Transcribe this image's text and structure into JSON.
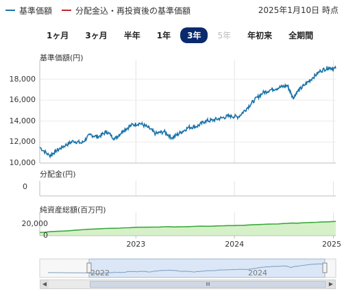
{
  "legend": {
    "series1_label": "基準価額",
    "series1_color": "#1a73a8",
    "series2_label": "分配金込・再投資後の基準価額",
    "series2_color": "#c0282e"
  },
  "as_of": "2025年1月10日 時点",
  "tabs": [
    {
      "label": "1ヶ月",
      "state": "normal"
    },
    {
      "label": "3ヶ月",
      "state": "normal"
    },
    {
      "label": "半年",
      "state": "normal"
    },
    {
      "label": "1年",
      "state": "normal"
    },
    {
      "label": "3年",
      "state": "active"
    },
    {
      "label": "5年",
      "state": "disabled"
    },
    {
      "label": "年初来",
      "state": "normal"
    },
    {
      "label": "全期間",
      "state": "normal"
    }
  ],
  "panels": {
    "price_title": "基準価額(円)",
    "dist_title": "分配金(円)",
    "assets_title": "純資産総額(百万円)"
  },
  "navigator": {
    "labels": [
      "2022",
      "2024"
    ],
    "scroll_glyph": "III",
    "left_arrow": "◀",
    "right_arrow": "▶"
  },
  "chart_data": [
    {
      "type": "line",
      "title": "基準価額(円)",
      "x_range": [
        "2022-01-10",
        "2025-01-10"
      ],
      "x_ticks": [
        "2023",
        "2024",
        "2025"
      ],
      "y_ticks": [
        "10,000",
        "12,000",
        "14,000",
        "16,000",
        "18,000"
      ],
      "ylim": [
        10000,
        19800
      ],
      "color": "#1a73a8",
      "x": [
        "2022-01-10",
        "2022-02-15",
        "2022-03-15",
        "2022-04-15",
        "2022-05-15",
        "2022-06-15",
        "2022-07-15",
        "2022-08-15",
        "2022-09-15",
        "2022-10-15",
        "2022-11-15",
        "2022-12-15",
        "2023-01-15",
        "2023-02-15",
        "2023-03-15",
        "2023-04-15",
        "2023-05-15",
        "2023-06-15",
        "2023-07-15",
        "2023-08-15",
        "2023-09-15",
        "2023-10-15",
        "2023-11-15",
        "2023-12-15",
        "2024-01-15",
        "2024-02-15",
        "2024-03-15",
        "2024-04-15",
        "2024-05-15",
        "2024-06-15",
        "2024-07-15",
        "2024-08-05",
        "2024-08-20",
        "2024-09-15",
        "2024-10-15",
        "2024-11-15",
        "2024-12-15",
        "2025-01-10"
      ],
      "values": [
        11500,
        10700,
        11200,
        11700,
        12100,
        11900,
        12700,
        12500,
        13000,
        12300,
        13100,
        13600,
        13800,
        13400,
        12800,
        13000,
        12400,
        12900,
        13400,
        13500,
        14000,
        14100,
        14300,
        14500,
        14400,
        15200,
        16000,
        16700,
        17000,
        17200,
        17400,
        16200,
        16800,
        17400,
        18100,
        18800,
        19100,
        19000
      ]
    },
    {
      "type": "line",
      "title": "分配金(円)",
      "y_ticks": [
        "0"
      ],
      "values": [
        0,
        0
      ]
    },
    {
      "type": "area",
      "title": "純資産総額(百万円)",
      "y_ticks": [
        "0",
        "20,000"
      ],
      "ylim": [
        0,
        40000
      ],
      "color": "#3aa83a",
      "x": [
        "2022-01-10",
        "2022-07-15",
        "2023-01-15",
        "2023-07-15",
        "2024-01-15",
        "2024-07-15",
        "2025-01-10"
      ],
      "values": [
        5500,
        11000,
        14500,
        15500,
        17500,
        21000,
        24500
      ]
    }
  ]
}
